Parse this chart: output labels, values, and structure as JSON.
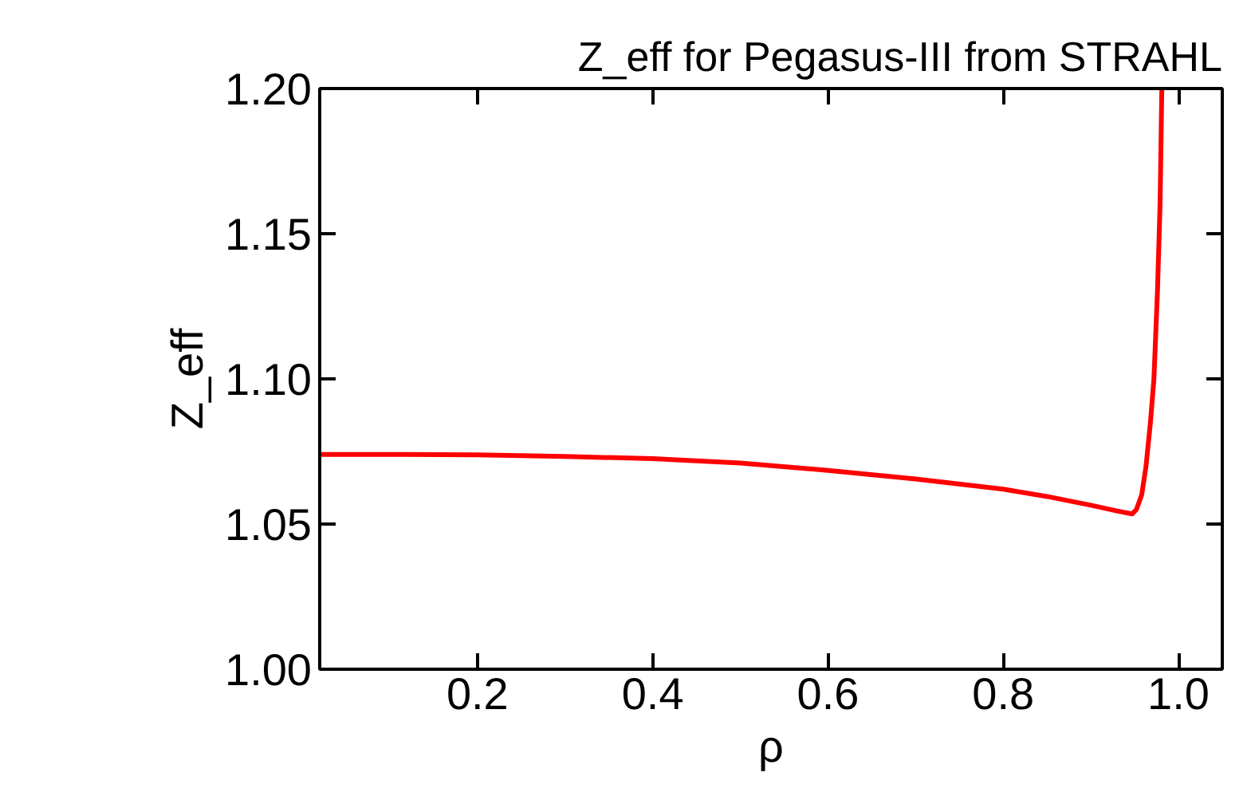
{
  "chart_data": {
    "type": "line",
    "title": "Z_eff for Pegasus-III from STRAHL",
    "xlabel": "ρ",
    "ylabel": "Z_eff",
    "x": [
      0.02,
      0.1,
      0.2,
      0.3,
      0.4,
      0.5,
      0.6,
      0.7,
      0.8,
      0.85,
      0.9,
      0.93,
      0.947,
      0.952,
      0.958,
      0.963,
      0.968,
      0.972,
      0.976,
      0.979,
      0.981
    ],
    "series": [
      {
        "color": "#ff0000",
        "values": [
          1.074,
          1.074,
          1.0738,
          1.0733,
          1.0725,
          1.071,
          1.0685,
          1.0655,
          1.062,
          1.0595,
          1.0565,
          1.0545,
          1.0535,
          1.055,
          1.06,
          1.07,
          1.085,
          1.1,
          1.13,
          1.16,
          1.2
        ]
      }
    ],
    "xlim": [
      0.02,
      1.05
    ],
    "xticks": [
      0.2,
      0.4,
      0.6,
      0.8,
      {
        "value": 1.0,
        "label": "1.0"
      }
    ],
    "ylim": [
      1.0,
      1.2
    ],
    "yticks": [
      {
        "value": 1.0,
        "label": "1.00"
      },
      {
        "value": 1.05,
        "label": "1.05"
      },
      {
        "value": 1.1,
        "label": "1.10"
      },
      {
        "value": 1.15,
        "label": "1.15"
      },
      {
        "value": 1.2,
        "label": "1.20"
      }
    ],
    "grid": false,
    "line_style": "solid",
    "marker": "none"
  }
}
